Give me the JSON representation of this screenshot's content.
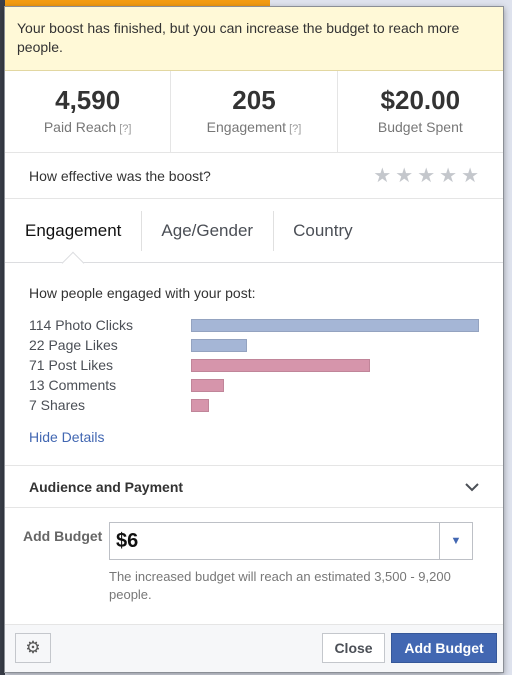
{
  "notice": "Your boost has finished, but you can increase the budget to reach more people.",
  "stats": [
    {
      "value": "4,590",
      "label": "Paid Reach",
      "help": "[?]"
    },
    {
      "value": "205",
      "label": "Engagement",
      "help": "[?]"
    },
    {
      "value": "$20.00",
      "label": "Budget Spent",
      "help": ""
    }
  ],
  "rating": {
    "question": "How effective was the boost?",
    "star": "★",
    "stars_filled": 0,
    "stars_total": 5
  },
  "tabs": [
    "Engagement",
    "Age/Gender",
    "Country"
  ],
  "engagement": {
    "title": "How people engaged with your post:",
    "rows": [
      {
        "label": "114 Photo Clicks",
        "value": 114,
        "color": "#a5b6d6"
      },
      {
        "label": "22 Page Likes",
        "value": 22,
        "color": "#a5b6d6"
      },
      {
        "label": "71 Post Likes",
        "value": 71,
        "color": "#d695ab"
      },
      {
        "label": "13 Comments",
        "value": 13,
        "color": "#d695ab"
      },
      {
        "label": "7 Shares",
        "value": 7,
        "color": "#d695ab"
      }
    ],
    "max": 114,
    "hide_link": "Hide Details"
  },
  "audience": {
    "title": "Audience and Payment",
    "toggle_icon": "chevron-down-icon",
    "toggle_glyph": "⌄"
  },
  "budget": {
    "label": "Add Budget",
    "value": "$6",
    "dropdown_glyph": "▼",
    "note": "The increased budget will reach an estimated 3,500 - 9,200 people."
  },
  "footer": {
    "settings_glyph": "⚙",
    "close_label": "Close",
    "add_label": "Add Budget"
  },
  "colors": {
    "accent": "#4267b2",
    "notice_bg": "#fff9d7"
  }
}
